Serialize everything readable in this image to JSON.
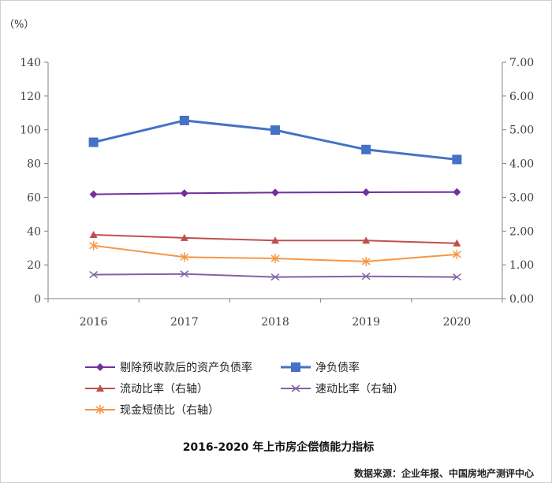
{
  "chart_data": {
    "type": "line",
    "title": "2016-2020 年上市房企偿债能力指标",
    "source": "数据来源：企业年报、中国房地产测评中心",
    "y_left_unit": "（%）",
    "x": [
      "2016",
      "2017",
      "2018",
      "2019",
      "2020"
    ],
    "y_left_range": [
      0,
      140
    ],
    "y_left_ticks": [
      "0",
      "20",
      "40",
      "60",
      "80",
      "100",
      "120",
      "140"
    ],
    "y_right_range": [
      0,
      7
    ],
    "y_right_ticks": [
      "0.00",
      "1.00",
      "2.00",
      "3.00",
      "4.00",
      "5.00",
      "6.00",
      "7.00"
    ],
    "grid": false,
    "legend_position": "bottom",
    "series": [
      {
        "name": "剔除预收款后的资产负债率",
        "axis": "left",
        "color": "#7030A0",
        "marker": "diamond",
        "values": [
          61.8,
          62.4,
          62.8,
          63.0,
          63.1
        ]
      },
      {
        "name": "净负债率",
        "axis": "left",
        "color": "#4472C4",
        "marker": "square",
        "values": [
          92.6,
          105.5,
          99.8,
          88.3,
          82.4
        ]
      },
      {
        "name": "流动比率（右轴）",
        "axis": "right",
        "color": "#C0504D",
        "marker": "triangle",
        "values": [
          1.89,
          1.8,
          1.72,
          1.72,
          1.64
        ]
      },
      {
        "name": "速动比率（右轴）",
        "axis": "right",
        "color": "#8064A2",
        "marker": "x",
        "values": [
          0.71,
          0.73,
          0.64,
          0.66,
          0.64
        ]
      },
      {
        "name": "现金短债比（右轴）",
        "axis": "right",
        "color": "#F79646",
        "marker": "star",
        "values": [
          1.57,
          1.23,
          1.19,
          1.1,
          1.31
        ]
      }
    ]
  }
}
